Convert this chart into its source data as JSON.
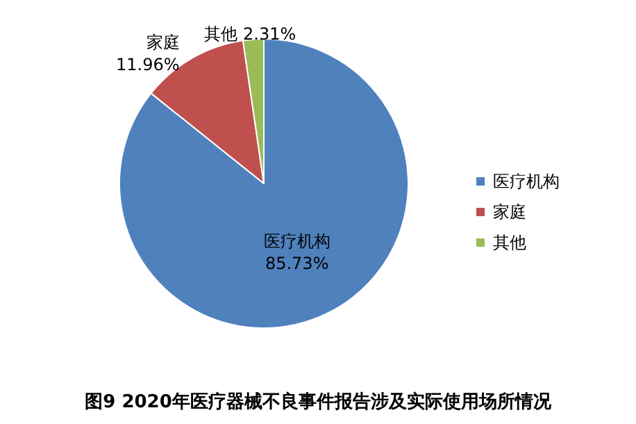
{
  "chart_data": {
    "type": "pie",
    "title": "图9 2020年医疗器械不良事件报告涉及实际使用场所情况",
    "categories": [
      "医疗机构",
      "家庭",
      "其他"
    ],
    "values": [
      85.73,
      11.96,
      2.31
    ],
    "value_labels": [
      "85.73%",
      "11.96%",
      "2.31%"
    ],
    "colors": [
      "#4f81bd",
      "#c0504d",
      "#9bbb59"
    ],
    "legend": "right"
  }
}
